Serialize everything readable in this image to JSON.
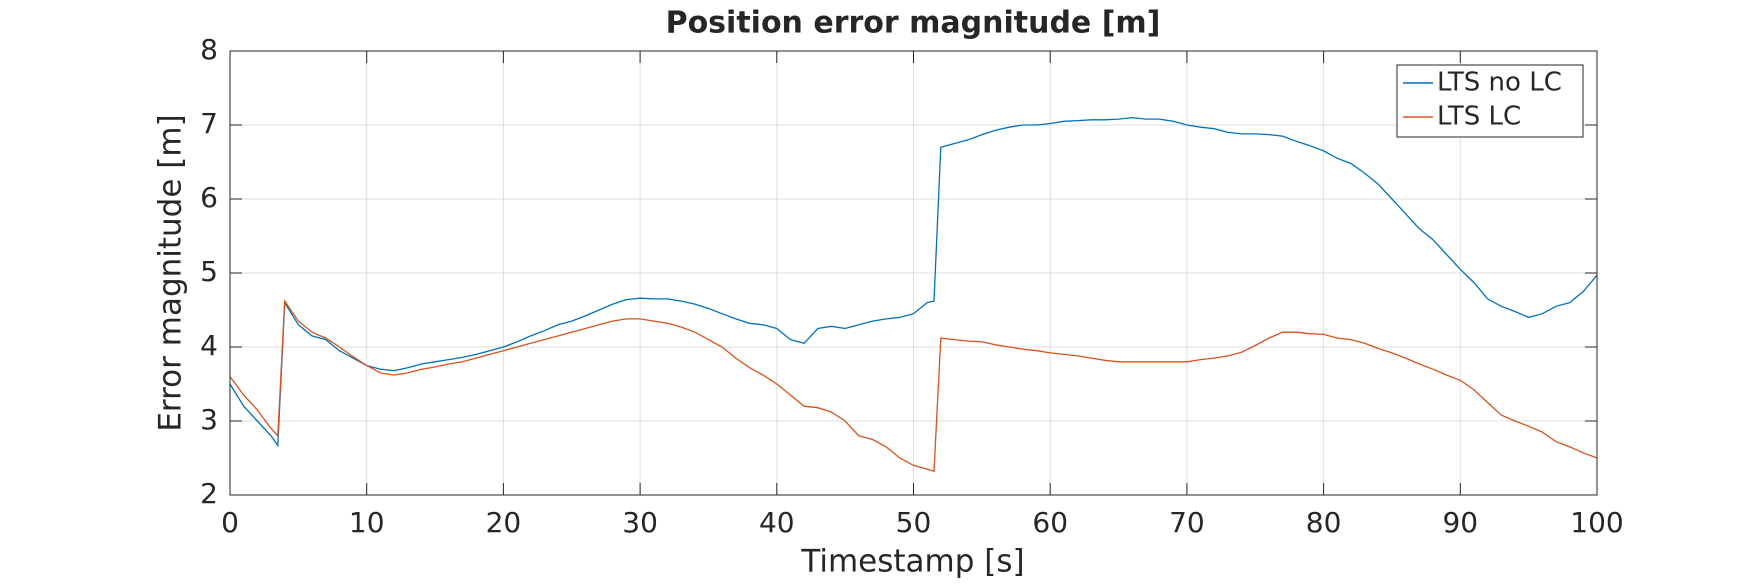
{
  "chart_data": {
    "type": "line",
    "title": "Position error magnitude [m]",
    "x_label": "Timestamp [s]",
    "y_label": "Error magnitude [m]",
    "x": [
      0,
      1,
      2,
      3,
      3.5,
      4,
      5,
      6,
      7,
      8,
      9,
      10,
      11,
      12,
      13,
      14,
      15,
      16,
      17,
      18,
      19,
      20,
      21,
      22,
      23,
      24,
      25,
      26,
      27,
      28,
      29,
      30,
      31,
      32,
      33,
      34,
      35,
      36,
      37,
      38,
      39,
      40,
      41,
      42,
      43,
      44,
      45,
      46,
      47,
      48,
      49,
      50,
      51,
      51.5,
      52,
      53,
      54,
      55,
      56,
      57,
      58,
      59,
      60,
      61,
      62,
      63,
      64,
      65,
      66,
      67,
      68,
      69,
      70,
      71,
      72,
      73,
      74,
      75,
      76,
      77,
      78,
      79,
      80,
      81,
      82,
      83,
      84,
      85,
      86,
      87,
      88,
      89,
      90,
      91,
      92,
      93,
      94,
      95,
      96,
      97,
      98,
      99,
      100
    ],
    "series": [
      {
        "name": "LTS no LC",
        "color": "#0072bd",
        "values": [
          3.5,
          3.2,
          3.0,
          2.8,
          2.67,
          4.6,
          4.3,
          4.15,
          4.1,
          3.95,
          3.85,
          3.75,
          3.7,
          3.68,
          3.72,
          3.77,
          3.8,
          3.83,
          3.86,
          3.9,
          3.95,
          4.0,
          4.07,
          4.15,
          4.22,
          4.3,
          4.35,
          4.42,
          4.5,
          4.58,
          4.64,
          4.66,
          4.65,
          4.65,
          4.62,
          4.58,
          4.52,
          4.45,
          4.38,
          4.32,
          4.3,
          4.25,
          4.1,
          4.05,
          4.25,
          4.28,
          4.25,
          4.3,
          4.35,
          4.38,
          4.4,
          4.45,
          4.6,
          4.62,
          6.7,
          6.75,
          6.8,
          6.87,
          6.93,
          6.97,
          7.0,
          7.0,
          7.02,
          7.05,
          7.06,
          7.07,
          7.07,
          7.08,
          7.1,
          7.08,
          7.08,
          7.05,
          7.0,
          6.97,
          6.95,
          6.9,
          6.88,
          6.88,
          6.87,
          6.85,
          6.78,
          6.72,
          6.65,
          6.55,
          6.48,
          6.35,
          6.2,
          6.0,
          5.8,
          5.6,
          5.45,
          5.25,
          5.05,
          4.87,
          4.65,
          4.55,
          4.48,
          4.4,
          4.45,
          4.55,
          4.6,
          4.75,
          4.97
        ]
      },
      {
        "name": "LTS LC",
        "color": "#d95319",
        "values": [
          3.6,
          3.35,
          3.15,
          2.9,
          2.8,
          4.62,
          4.35,
          4.2,
          4.12,
          4.0,
          3.87,
          3.75,
          3.65,
          3.62,
          3.65,
          3.7,
          3.73,
          3.77,
          3.8,
          3.85,
          3.9,
          3.95,
          4.0,
          4.05,
          4.1,
          4.15,
          4.2,
          4.25,
          4.3,
          4.35,
          4.38,
          4.38,
          4.35,
          4.32,
          4.27,
          4.2,
          4.1,
          4.0,
          3.85,
          3.72,
          3.62,
          3.5,
          3.35,
          3.2,
          3.18,
          3.12,
          3.0,
          2.8,
          2.75,
          2.65,
          2.5,
          2.4,
          2.35,
          2.32,
          4.12,
          4.1,
          4.08,
          4.07,
          4.03,
          4.0,
          3.97,
          3.95,
          3.92,
          3.9,
          3.88,
          3.85,
          3.82,
          3.8,
          3.8,
          3.8,
          3.8,
          3.8,
          3.8,
          3.83,
          3.85,
          3.88,
          3.93,
          4.02,
          4.12,
          4.2,
          4.2,
          4.18,
          4.17,
          4.12,
          4.1,
          4.05,
          3.98,
          3.92,
          3.85,
          3.77,
          3.7,
          3.62,
          3.55,
          3.42,
          3.25,
          3.08,
          3.0,
          2.93,
          2.85,
          2.72,
          2.65,
          2.57,
          2.5
        ]
      }
    ],
    "xlim": [
      0,
      100
    ],
    "xticks": [
      0,
      10,
      20,
      30,
      40,
      50,
      60,
      70,
      80,
      90,
      100
    ],
    "ylim": [
      2,
      8
    ],
    "yticks": [
      2,
      3,
      4,
      5,
      6,
      7,
      8
    ],
    "grid": true,
    "legend": "upper right"
  }
}
